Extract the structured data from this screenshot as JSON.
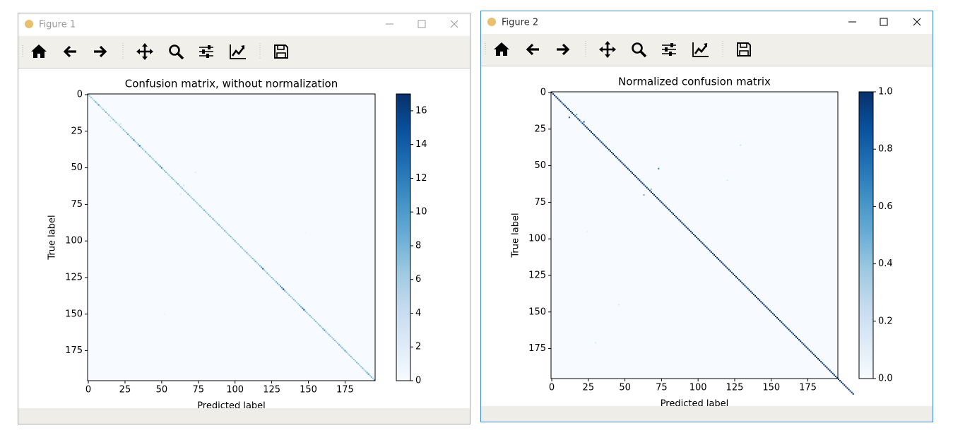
{
  "windows": [
    {
      "title": "Figure 1"
    },
    {
      "title": "Figure 2"
    }
  ],
  "chart_data": [
    {
      "type": "heatmap",
      "title": "Confusion matrix, without normalization",
      "x_label": "Predicted label",
      "y_label": "True label",
      "xlim": [
        -0.5,
        195.5
      ],
      "ylim": [
        195.5,
        -0.5
      ],
      "xticks": [
        0,
        25,
        50,
        75,
        100,
        125,
        150,
        175
      ],
      "yticks": [
        0,
        25,
        50,
        75,
        100,
        125,
        150,
        175
      ],
      "colormap": [
        "#f7fbff",
        "#deebf7",
        "#c6dbef",
        "#9ecae1",
        "#6baed6",
        "#4292c6",
        "#2171b5",
        "#08519c",
        "#08306b"
      ],
      "clim": [
        0,
        17
      ],
      "cbar_ticks": [
        0,
        2,
        4,
        6,
        8,
        10,
        12,
        14,
        16
      ],
      "diagonal": [
        8,
        6,
        7,
        5,
        6,
        9,
        7,
        11,
        6,
        5,
        7,
        6,
        8,
        6,
        7,
        5,
        6,
        8,
        6,
        7,
        4,
        6,
        7,
        5,
        8,
        6,
        7,
        9,
        6,
        7,
        8,
        12,
        7,
        6,
        8,
        14,
        6,
        7,
        5,
        8,
        6,
        7,
        8,
        6,
        7,
        6,
        9,
        7,
        8,
        10,
        12,
        6,
        7,
        8,
        6,
        7,
        6,
        8,
        7,
        6,
        7,
        9,
        6,
        7,
        8,
        6,
        7,
        6,
        8,
        7,
        6,
        7,
        8,
        6,
        7,
        6,
        8,
        7,
        6,
        9,
        7,
        6,
        8,
        7,
        6,
        8,
        7,
        6,
        7,
        8,
        6,
        7,
        6,
        8,
        7,
        6,
        7,
        8,
        6,
        7,
        8,
        6,
        7,
        6,
        8,
        7,
        6,
        7,
        8,
        6,
        7,
        6,
        8,
        7,
        9,
        6,
        7,
        8,
        10,
        14,
        7,
        6,
        8,
        7,
        6,
        8,
        7,
        6,
        8,
        9,
        7,
        10,
        12,
        17,
        9,
        7,
        6,
        8,
        7,
        6,
        8,
        7,
        6,
        7,
        8,
        9,
        12,
        15,
        8,
        7,
        6,
        8,
        7,
        6,
        7,
        8,
        6,
        7,
        8,
        6,
        9,
        11,
        7,
        6,
        8,
        7,
        6,
        7,
        8,
        6,
        7,
        9,
        7,
        8,
        7,
        10,
        8,
        6,
        7,
        8,
        6,
        7,
        6,
        8,
        7,
        6,
        7,
        8,
        6,
        7,
        9,
        11,
        7,
        8,
        6,
        9
      ],
      "cells": [
        [
          18,
          15,
          3
        ],
        [
          20,
          22,
          4
        ],
        [
          53,
          73,
          2
        ],
        [
          62,
          65,
          3
        ],
        [
          68,
          63,
          2
        ],
        [
          94,
          148,
          1
        ],
        [
          150,
          52,
          1
        ]
      ]
    },
    {
      "type": "heatmap",
      "title": "Normalized confusion matrix",
      "x_label": "Predicted label",
      "y_label": "True label",
      "xlim": [
        -0.5,
        195.5
      ],
      "ylim": [
        195.5,
        -0.5
      ],
      "xticks": [
        0,
        25,
        50,
        75,
        100,
        125,
        150,
        175
      ],
      "yticks": [
        0,
        25,
        50,
        75,
        100,
        125,
        150,
        175
      ],
      "colormap": [
        "#f7fbff",
        "#deebf7",
        "#c6dbef",
        "#9ecae1",
        "#6baed6",
        "#4292c6",
        "#2171b5",
        "#08519c",
        "#08306b"
      ],
      "clim": [
        0,
        1
      ],
      "cbar_ticks": [
        {
          "value": 0,
          "label": "0.0"
        },
        {
          "value": 0.2,
          "label": "0.2"
        },
        {
          "value": 0.4,
          "label": "0.4"
        },
        {
          "value": 0.6,
          "label": "0.6"
        },
        {
          "value": 0.8,
          "label": "0.8"
        },
        {
          "value": 1,
          "label": "1.0"
        }
      ],
      "diagonal": [
        1,
        1,
        1,
        0.9,
        1,
        1,
        1,
        0.8,
        1,
        1,
        1,
        1,
        0.9,
        1,
        1,
        1,
        0.9,
        0.8,
        1,
        1,
        0.7,
        1,
        0.9,
        1,
        1,
        1,
        1,
        1,
        1,
        1,
        1,
        1,
        1,
        0.9,
        1,
        1,
        1,
        1,
        1,
        1,
        1,
        1,
        1,
        1,
        1,
        0.9,
        1,
        1,
        1,
        1,
        1,
        1,
        1,
        1,
        1,
        1,
        1,
        1,
        1,
        1,
        1,
        1,
        1,
        1,
        0.9,
        1,
        1,
        1,
        1,
        1,
        1,
        1,
        1,
        1,
        1,
        1,
        1,
        1,
        1,
        1,
        1,
        1,
        1,
        1,
        1,
        0.9,
        1,
        1,
        1,
        1,
        1,
        1,
        1,
        1,
        1,
        1,
        1,
        1,
        1,
        1,
        1,
        1,
        1,
        1,
        1,
        1,
        1,
        1,
        0.9,
        1,
        1,
        1,
        1,
        1,
        1,
        1,
        1,
        1,
        1,
        1,
        1,
        1,
        1,
        1,
        1,
        1,
        1,
        1,
        1,
        1,
        1,
        1,
        1,
        0.9,
        1,
        1,
        1,
        1,
        1,
        1,
        1,
        1,
        1,
        1,
        1,
        1,
        1,
        1,
        1,
        1,
        1,
        1,
        1,
        1,
        1,
        1,
        1,
        1,
        1,
        1,
        1,
        1,
        1,
        1,
        0.9,
        1,
        1,
        1,
        1,
        1,
        1,
        1,
        1,
        1,
        1,
        1,
        1,
        1,
        1,
        1,
        1,
        1,
        1,
        1,
        1,
        0.9,
        1,
        1,
        1,
        1,
        1,
        1,
        1,
        1,
        1,
        1,
        1,
        1,
        1,
        1,
        1,
        1,
        1,
        1,
        0.9,
        1,
        1
      ],
      "cells": [
        [
          17,
          12,
          0.8
        ],
        [
          15,
          17,
          0.5
        ],
        [
          20,
          22,
          0.8
        ],
        [
          52,
          73,
          0.7
        ],
        [
          70,
          63,
          0.5
        ],
        [
          66,
          68,
          0.4
        ],
        [
          36,
          129,
          0.2
        ],
        [
          60,
          120,
          0.15
        ],
        [
          145,
          46,
          0.15
        ],
        [
          171,
          30,
          0.15
        ],
        [
          95,
          24,
          0.1
        ]
      ]
    }
  ]
}
